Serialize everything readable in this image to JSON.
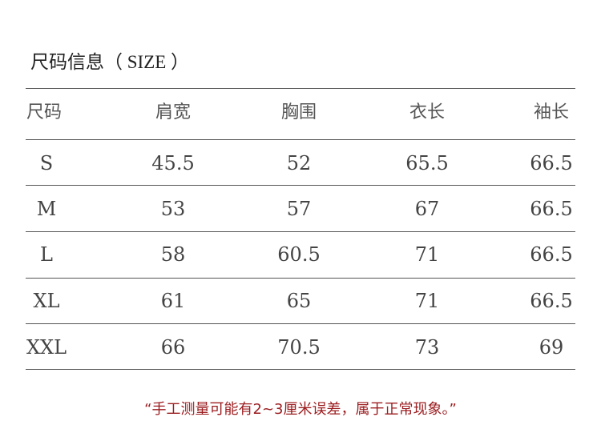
{
  "title": {
    "cn": "尺码信息",
    "en": "（ SIZE ）"
  },
  "table": {
    "headers": [
      "尺码",
      "肩宽",
      "胸围",
      "衣长",
      "袖长"
    ],
    "rows": [
      [
        "S",
        "45.5",
        "52",
        "65.5",
        "66.5"
      ],
      [
        "M",
        "53",
        "57",
        "67",
        "66.5"
      ],
      [
        "L",
        "58",
        "60.5",
        "71",
        "66.5"
      ],
      [
        "XL",
        "61",
        "65",
        "71",
        "66.5"
      ],
      [
        "XXL",
        "66",
        "70.5",
        "73",
        "69"
      ]
    ]
  },
  "note": "“手工测量可能有2~3厘米误差，属于正常现象。”",
  "colors": {
    "note": "#9b1c1f",
    "text": "#444444",
    "rule": "#555555"
  }
}
